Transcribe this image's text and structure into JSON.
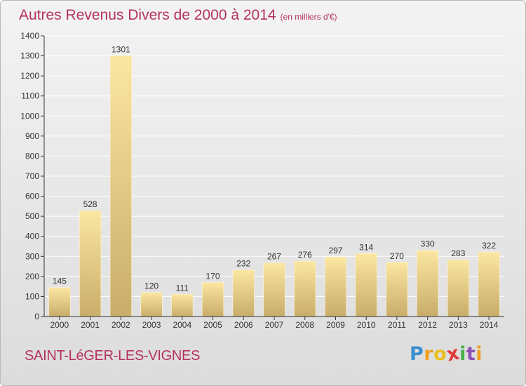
{
  "title": "Autres Revenus Divers de 2000 à 2014",
  "title_unit": "(en milliers d'€)",
  "commune": "SAINT-LéGER-LES-VIGNES",
  "logo": {
    "letters": [
      "P",
      "r",
      "o",
      "x",
      "i",
      "t",
      "i"
    ],
    "colors": [
      "#3a8fd0",
      "#f0a020",
      "#e9c020",
      "#e23a3a",
      "#49b04a",
      "#8b4fb3",
      "#f0a020"
    ]
  },
  "colors": {
    "bar_light": "#fbe6a2",
    "bar_dark": "#c9ad6a",
    "grid": "#ffffff",
    "axis": "#333333",
    "accent": "#b5325e"
  },
  "chart_data": {
    "type": "bar",
    "categories": [
      "2000",
      "2001",
      "2002",
      "2003",
      "2004",
      "2005",
      "2006",
      "2007",
      "2008",
      "2009",
      "2010",
      "2011",
      "2012",
      "2013",
      "2014"
    ],
    "values": [
      145,
      528,
      1301,
      120,
      111,
      170,
      232,
      267,
      276,
      297,
      314,
      270,
      330,
      283,
      322
    ],
    "data_labels": [
      "145",
      "528",
      "1301",
      "120",
      "111",
      "170",
      "232",
      "267",
      "276",
      "297",
      "314",
      "270",
      "330",
      "283",
      "322"
    ],
    "yticks": [
      "0",
      "100",
      "200",
      "300",
      "400",
      "500",
      "600",
      "700",
      "800",
      "900",
      "1000",
      "1100",
      "1200",
      "1300",
      "1400"
    ],
    "ylim": [
      0,
      1400
    ],
    "grid": true,
    "legend": "none"
  }
}
